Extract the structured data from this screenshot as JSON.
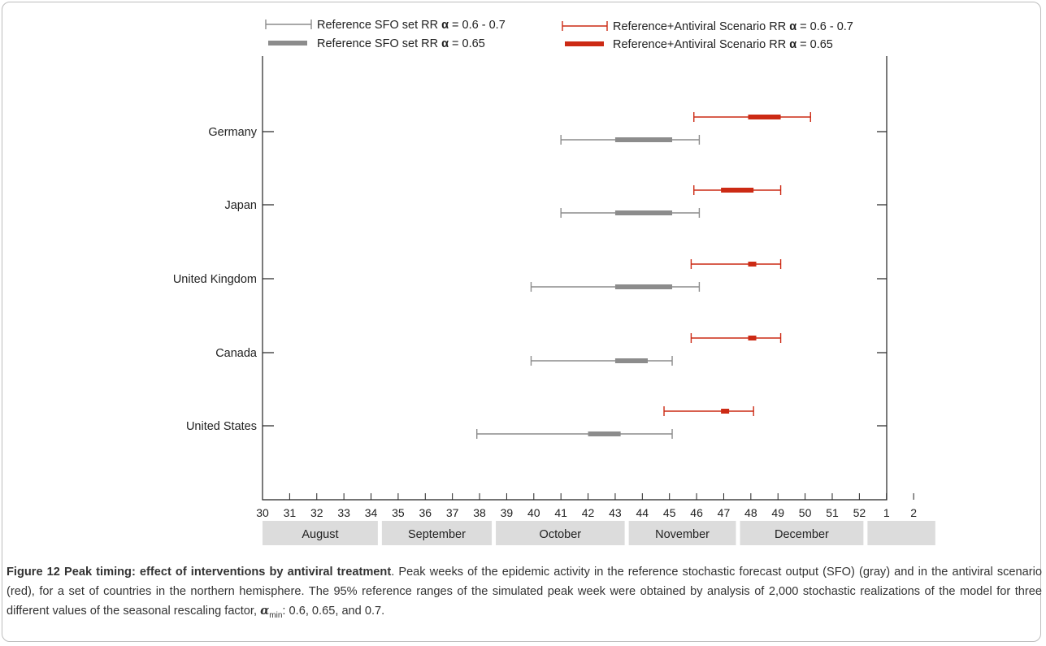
{
  "chart_data": {
    "type": "range",
    "title": "",
    "xlabel": "",
    "ylabel": "",
    "x_ticks": [
      "30",
      "31",
      "32",
      "33",
      "34",
      "35",
      "36",
      "37",
      "38",
      "39",
      "40",
      "41",
      "42",
      "43",
      "44",
      "45",
      "46",
      "47",
      "48",
      "49",
      "50",
      "51",
      "52",
      "1",
      "2"
    ],
    "months": [
      {
        "label": "August",
        "start": 30,
        "end": 34.25
      },
      {
        "label": "September",
        "start": 34.4,
        "end": 38.45
      },
      {
        "label": "October",
        "start": 38.6,
        "end": 43.35
      },
      {
        "label": "November",
        "start": 43.5,
        "end": 47.45
      },
      {
        "label": "December",
        "start": 47.6,
        "end": 52.15
      },
      {
        "label": "",
        "start": 52.3,
        "end": 54.8
      }
    ],
    "categories": [
      "Germany",
      "Japan",
      "United Kingdom",
      "Canada",
      "United States"
    ],
    "series": [
      {
        "name": "Reference SFO set RR",
        "color": "#8c8c8c",
        "range_label": "= 0.6 - 0.7",
        "core_label": "= 0.65",
        "ranges": [
          [
            41,
            46.1
          ],
          [
            41,
            46.1
          ],
          [
            39.9,
            46.1
          ],
          [
            39.9,
            45.1
          ],
          [
            37.9,
            45.1
          ]
        ],
        "cores": [
          [
            43,
            45.1
          ],
          [
            43,
            45.1
          ],
          [
            43,
            45.1
          ],
          [
            43,
            44.2
          ],
          [
            42,
            43.2
          ]
        ]
      },
      {
        "name": "Reference+Antiviral Scenario RR",
        "color": "#cc2a14",
        "range_label": "= 0.6 - 0.7",
        "core_label": "= 0.65",
        "ranges": [
          [
            45.9,
            50.2
          ],
          [
            45.9,
            49.1
          ],
          [
            45.8,
            49.1
          ],
          [
            45.8,
            49.1
          ],
          [
            44.8,
            48.1
          ]
        ],
        "cores": [
          [
            47.9,
            49.1
          ],
          [
            46.9,
            48.1
          ],
          [
            47.9,
            48.2
          ],
          [
            47.9,
            48.2
          ],
          [
            46.9,
            47.2
          ]
        ]
      }
    ]
  },
  "legend": {
    "alpha_symbol": "α"
  },
  "caption": {
    "title": "Figure 12 Peak timing: effect of interventions by antiviral treatment",
    "body": ". Peak weeks of the epidemic activity in the reference stochastic forecast output (SFO) (gray) and in the antiviral scenario (red), for a set of countries in the northern hemisphere. The 95% reference ranges of the simulated peak week were obtained by analysis of 2,000 stochastic realizations of the model for three different values of the seasonal rescaling factor, ",
    "alpha": "α",
    "alpha_sub": "min",
    "tail": ": 0.6, 0.65, and 0.7."
  }
}
